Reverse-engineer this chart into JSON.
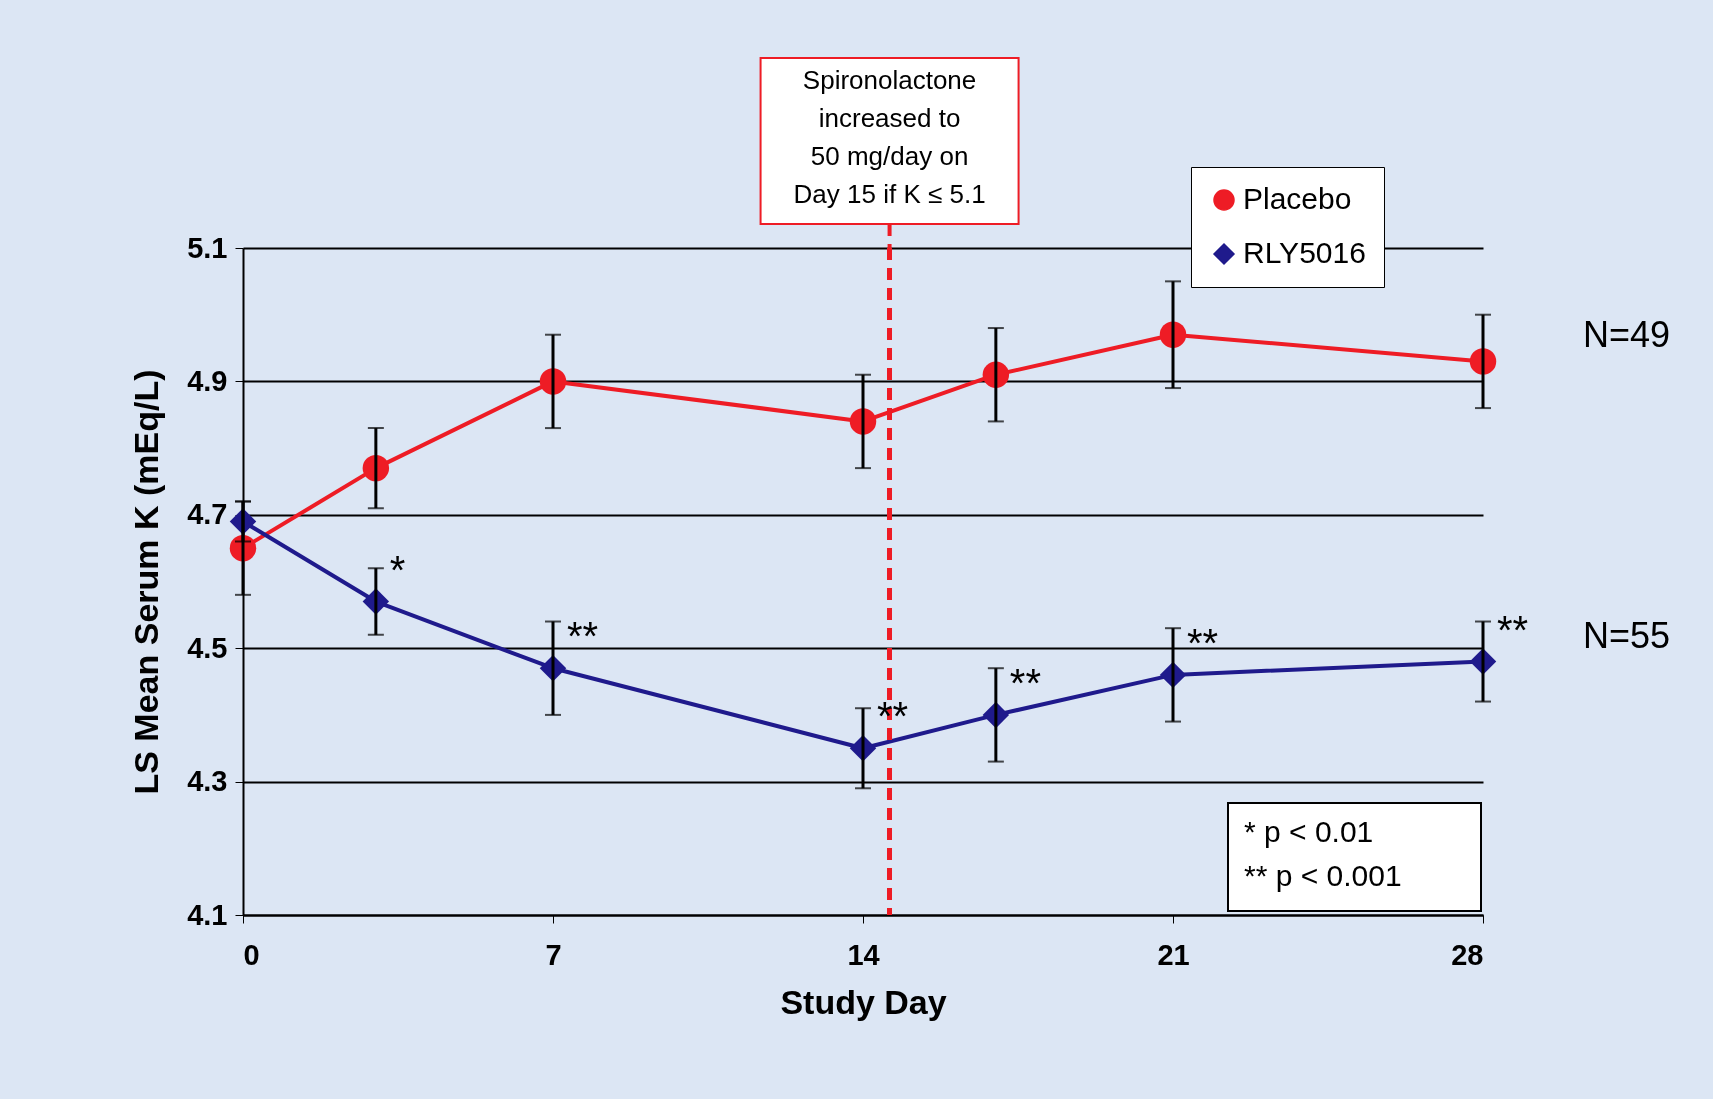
{
  "chart_data": {
    "type": "line",
    "xlabel": "Study Day",
    "ylabel": "LS Mean Serum K (mEq/L)",
    "x": [
      0,
      3,
      7,
      14,
      17,
      21,
      28
    ],
    "series": [
      {
        "name": "Placebo",
        "color": "#ee1c25",
        "marker": "circle",
        "values": [
          4.65,
          4.77,
          4.9,
          4.84,
          4.91,
          4.97,
          4.93
        ],
        "errors": [
          0.07,
          0.06,
          0.07,
          0.07,
          0.07,
          0.08,
          0.07
        ]
      },
      {
        "name": "RLY5016",
        "color": "#1f1a8c",
        "marker": "diamond",
        "values": [
          4.69,
          4.57,
          4.47,
          4.35,
          4.4,
          4.46,
          4.48
        ],
        "errors": [
          0.03,
          0.05,
          0.07,
          0.06,
          0.07,
          0.07,
          0.06
        ]
      }
    ],
    "xlim": [
      0,
      28
    ],
    "xticks": [
      0,
      7,
      14,
      21,
      28
    ],
    "ylim": [
      4.1,
      5.1
    ],
    "yticks": [
      4.1,
      4.3,
      4.5,
      4.7,
      4.9,
      5.1
    ],
    "grid": "y",
    "legend": "top right",
    "ref_lines": [
      {
        "axis": "x",
        "value": 14.6,
        "label": "Spironolactone\nincreased to\n50 mg/day on\nDay 15 if K ≤ 5.1",
        "color": "#ee1c25",
        "line_style": "dashed"
      }
    ],
    "annotations": [
      {
        "text": "*",
        "x": 3,
        "y": 4.57
      },
      {
        "text": "**",
        "x": 7,
        "y": 4.47
      },
      {
        "text": "**",
        "x": 14,
        "y": 4.35
      },
      {
        "text": "**",
        "x": 17,
        "y": 4.4
      },
      {
        "text": "**",
        "x": 21,
        "y": 4.46
      },
      {
        "text": "**",
        "x": 28,
        "y": 4.48
      },
      "N=49",
      "N=55",
      "*   p < 0.01",
      "** p < 0.001"
    ]
  }
}
